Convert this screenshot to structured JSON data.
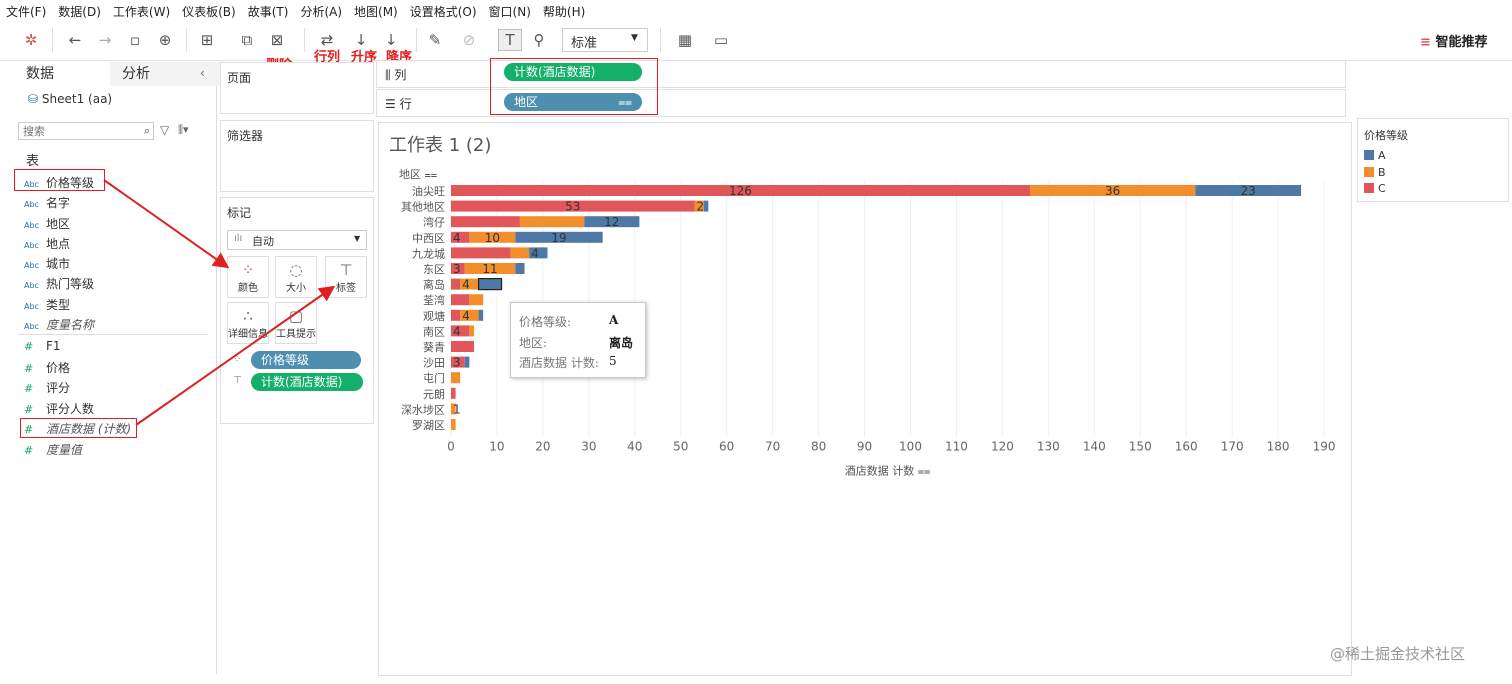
{
  "menu": [
    "文件(F)",
    "数据(D)",
    "工作表(W)",
    "仪表板(B)",
    "故事(T)",
    "分析(A)",
    "地图(M)",
    "设置格式(O)",
    "窗口(N)",
    "帮助(H)"
  ],
  "toolbar": {
    "annotations": {
      "delete": "删除",
      "rowcol": "行列",
      "asc": "升序",
      "desc": "降序"
    },
    "fit_select": "标准",
    "smart": "智能推荐"
  },
  "datapane": {
    "tabs": {
      "data": "数据",
      "analysis": "分析"
    },
    "source": "Sheet1 (aa)",
    "search_placeholder": "搜索",
    "section": "表",
    "dimensions": [
      "价格等级",
      "名字",
      "地区",
      "地点",
      "城市",
      "热门等级",
      "类型"
    ],
    "dim_measure_names": "度量名称",
    "measures": [
      "F1",
      "价格",
      "评分",
      "评分人数"
    ],
    "measure_count": "酒店数据 (计数)",
    "measure_values": "度量值",
    "abc": "Abc",
    "hash": "#"
  },
  "cards": {
    "pages": "页面",
    "filters": "筛选器",
    "marks": "标记",
    "mark_type": "自动",
    "buttons": {
      "color": "颜色",
      "size": "大小",
      "label": "标签",
      "detail": "详细信息",
      "tooltip": "工具提示"
    },
    "pills": {
      "color": "价格等级",
      "label": "计数(酒店数据)"
    }
  },
  "shelves": {
    "columns_label": "列",
    "rows_label": "行",
    "columns_pill": "计数(酒店数据)",
    "rows_pill": "地区"
  },
  "legend": {
    "title": "价格等级",
    "items": [
      {
        "name": "A",
        "color": "#4e79a7"
      },
      {
        "name": "B",
        "color": "#f28e2b"
      },
      {
        "name": "C",
        "color": "#e15759"
      }
    ]
  },
  "tooltip": {
    "k1": "价格等级:",
    "v1": "A",
    "k2": "地区:",
    "v2": "离岛",
    "k3": "酒店数据 计数:",
    "v3": "5"
  },
  "watermark": "@稀土掘金技术社区",
  "chart_data": {
    "type": "bar",
    "orientation": "horizontal-stacked",
    "title": "工作表 1 (2)",
    "ylabel": "地区",
    "xlabel": "酒店数据 计数",
    "xlim": [
      0,
      190
    ],
    "xticks": [
      0,
      10,
      20,
      30,
      40,
      50,
      60,
      70,
      80,
      90,
      100,
      110,
      120,
      130,
      140,
      150,
      160,
      170,
      180,
      190
    ],
    "categories": [
      "油尖旺",
      "其他地区",
      "湾仔",
      "中西区",
      "九龙城",
      "东区",
      "离岛",
      "荃湾",
      "观塘",
      "南区",
      "葵青",
      "沙田",
      "屯门",
      "元朗",
      "深水埗区",
      "罗湖区"
    ],
    "series": [
      {
        "name": "C",
        "color": "#e15759",
        "values": [
          126,
          53,
          15,
          4,
          13,
          3,
          2,
          4,
          2,
          4,
          5,
          3,
          0,
          1,
          0,
          0
        ],
        "labels": [
          "126",
          "53",
          "",
          "4",
          "",
          "3",
          "",
          "",
          "",
          "4",
          "",
          "3",
          "",
          "",
          "",
          ""
        ]
      },
      {
        "name": "B",
        "color": "#f28e2b",
        "values": [
          36,
          2,
          14,
          10,
          4,
          11,
          4,
          3,
          4,
          1,
          0,
          0,
          2,
          0,
          1,
          1
        ],
        "labels": [
          "36",
          "2",
          "",
          "10",
          "",
          "11",
          "4",
          "",
          "4",
          "",
          "",
          "",
          "",
          "",
          "1",
          ""
        ]
      },
      {
        "name": "A",
        "color": "#4e79a7",
        "values": [
          23,
          1,
          12,
          19,
          4,
          2,
          5,
          0,
          1,
          0,
          0,
          1,
          0,
          0,
          0,
          0
        ],
        "labels": [
          "23",
          "",
          "12",
          "19",
          "4",
          "",
          "",
          "",
          "",
          "",
          "",
          "",
          "",
          "",
          "",
          ""
        ]
      }
    ],
    "grid": true,
    "legend": "right"
  }
}
